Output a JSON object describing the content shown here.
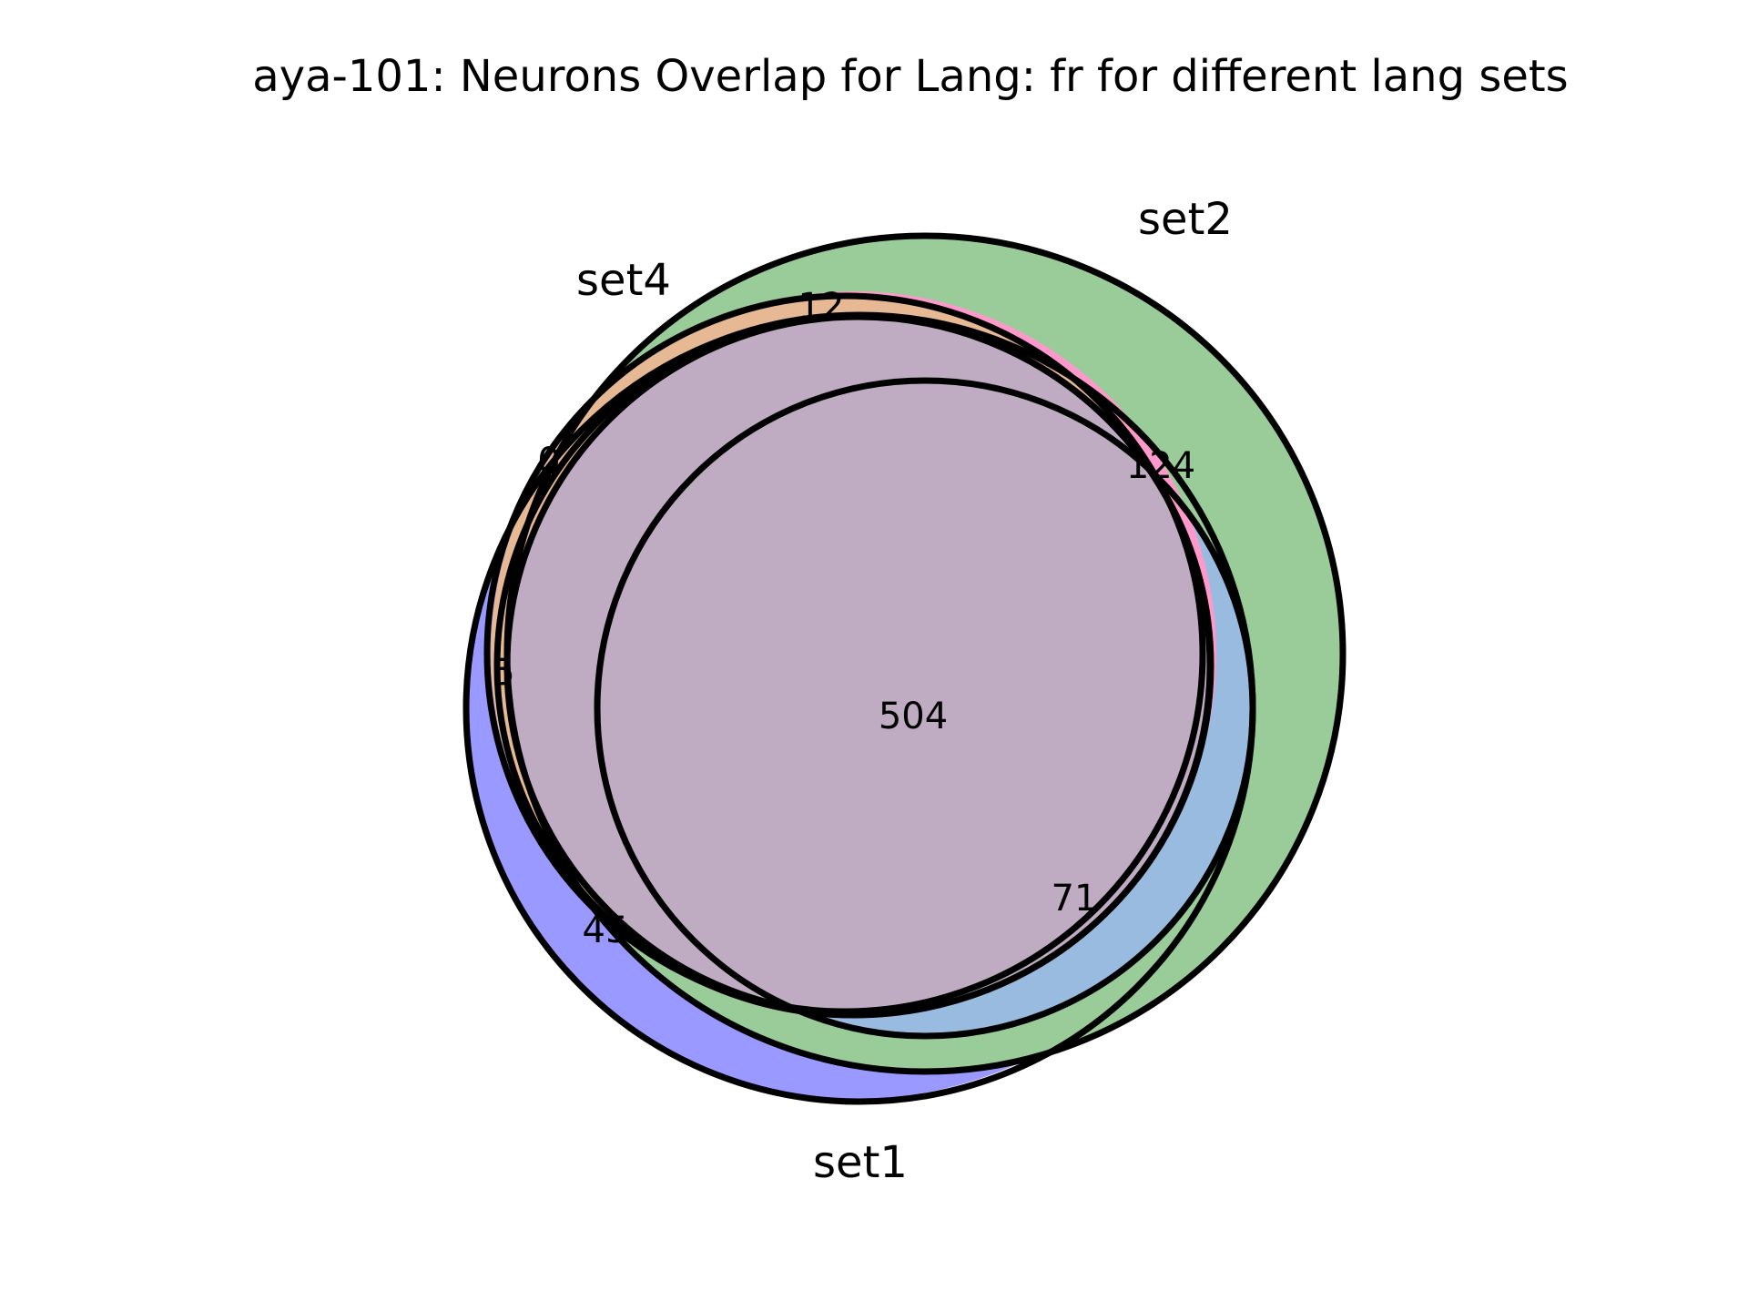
{
  "figure": {
    "title": "aya-101: Neurons Overlap for Lang: fr for different lang sets"
  },
  "sets": {
    "set1": {
      "label": "set1",
      "color": "#9999ff"
    },
    "set2": {
      "label": "set2",
      "color": "#99cc99"
    },
    "set3": {
      "label": "",
      "color": "#ff99cc"
    },
    "set4": {
      "label": "set4",
      "color": "#e6b894"
    }
  },
  "overlap_colors": {
    "set1_set2": "#99bbe0",
    "all_sets": "#c0acc2"
  },
  "regions": {
    "all_sets": "504",
    "set1_set2_set4": "124",
    "set1_set2_set3": "71",
    "set1_set3_only": "45",
    "set2_set4_only": "12",
    "set1_set3_set4_edge": "5",
    "set3_set4_tip": "0"
  }
}
